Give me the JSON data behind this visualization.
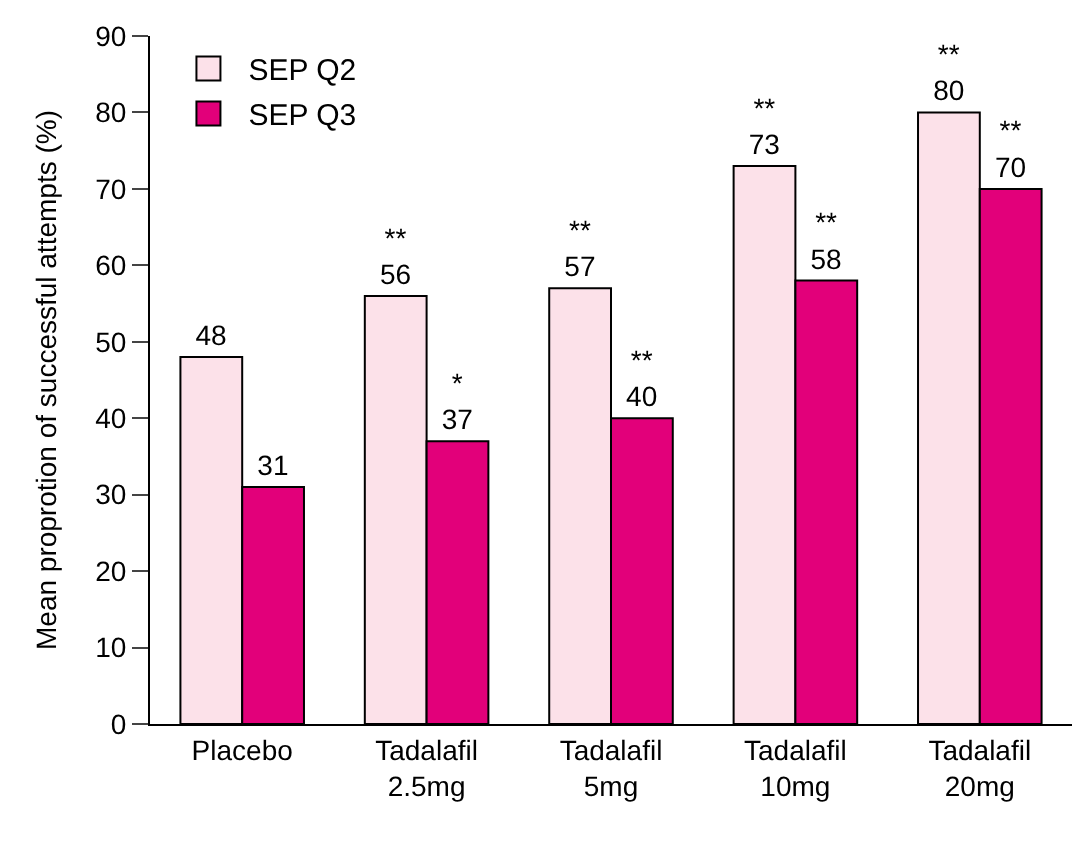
{
  "chart_data": {
    "type": "bar",
    "ylabel": "Mean proprotion of successful attempts (%)",
    "categories": [
      "Placebo",
      "Tadalafil\n2.5mg",
      "Tadalafil\n5mg",
      "Tadalafil\n10mg",
      "Tadalafil\n20mg"
    ],
    "series": [
      {
        "name": "SEP Q2",
        "color": "#fce1e9",
        "values": [
          48,
          56,
          57,
          73,
          80
        ],
        "value_labels": [
          "48",
          "**\n56",
          "**\n57",
          "**\n73",
          "**\n80"
        ]
      },
      {
        "name": "SEP Q3",
        "color": "#e2007a",
        "values": [
          31,
          37,
          40,
          58,
          70
        ],
        "value_labels": [
          "31",
          "*\n37",
          "**\n40",
          "**\n58",
          "**\n70"
        ]
      }
    ],
    "ylim": [
      0,
      90
    ],
    "yticks": [
      0,
      10,
      20,
      30,
      40,
      50,
      60,
      70,
      80,
      90
    ],
    "legend": "top left"
  }
}
